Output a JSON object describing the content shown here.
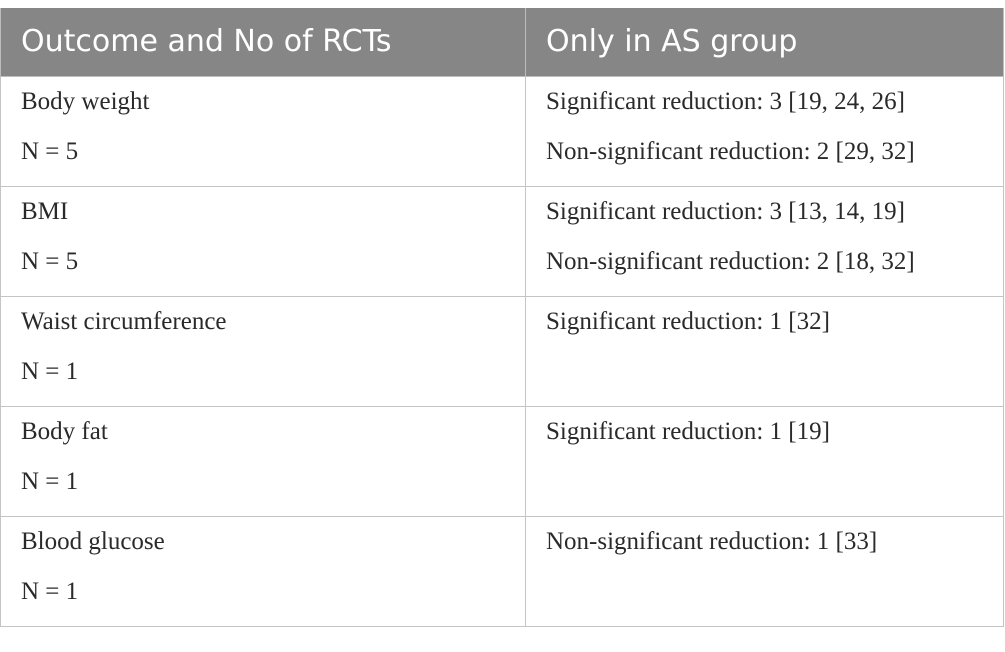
{
  "table": {
    "headers": [
      "Outcome and No of RCTs",
      "Only in AS group"
    ],
    "rows": [
      {
        "outcome": "Body weight",
        "n": "N = 5",
        "findings": [
          "Significant reduction: 3 [19, 24, 26]",
          "Non-significant reduction: 2 [29, 32]"
        ]
      },
      {
        "outcome": "BMI",
        "n": "N = 5",
        "findings": [
          "Significant reduction: 3 [13, 14, 19]",
          "Non-significant reduction: 2 [18, 32]"
        ]
      },
      {
        "outcome": "Waist circumference",
        "n": "N = 1",
        "findings": [
          "Significant reduction: 1 [32]"
        ]
      },
      {
        "outcome": "Body fat",
        "n": "N = 1",
        "findings": [
          "Significant reduction: 1 [19]"
        ]
      },
      {
        "outcome": "Blood glucose",
        "n": "N = 1",
        "findings": [
          "Non-significant reduction: 1 [33]"
        ]
      }
    ]
  }
}
